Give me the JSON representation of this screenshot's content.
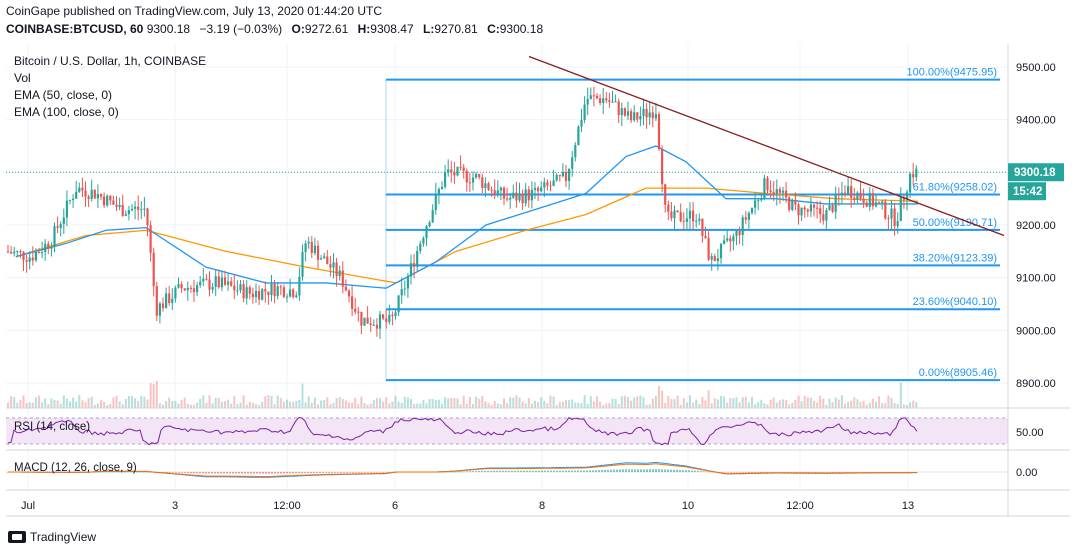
{
  "header": {
    "published": "CoinGape published on TradingView.com, July 13, 2020 01:44:20 UTC",
    "symbol": "COINBASE:BTCUSD, 60",
    "last": "9300.18",
    "change": "−3.19 (−0.03%)",
    "o_label": "O:",
    "o_val": "9272.61",
    "h_label": "H:",
    "h_val": "9308.47",
    "l_label": "L:",
    "l_val": "9270.81",
    "c_label": "C:",
    "c_val": "9300.18"
  },
  "legend": {
    "title": "Bitcoin / U.S. Dollar, 1h, COINBASE",
    "vol": "Vol",
    "ema50": "EMA (50, close, 0)",
    "ema100": "EMA (100, close, 0)",
    "rsi": "RSI (14, close)",
    "macd": "MACD (12, 26, close, 9)"
  },
  "branding": "TradingView",
  "colors": {
    "up": "#26a69a",
    "down": "#ef5350",
    "ema50": "#2196f3",
    "ema100": "#ff9800",
    "fib": "#2196f3",
    "trendline": "#8b1a1a",
    "rsi": "#7b1fa2",
    "rsi_band": "#f3e5f5",
    "price_tag": "#26a69a"
  },
  "chart_data": {
    "type": "candlestick",
    "price_axis": {
      "ticks": [
        "9500.00",
        "9400.00",
        "9300.00",
        "9200.00",
        "9100.00",
        "9000.00",
        "8900.00"
      ],
      "tick_values": [
        9500,
        9400,
        9300,
        9200,
        9100,
        9000,
        8900
      ],
      "ylim": [
        8850,
        9530
      ]
    },
    "time_axis": {
      "ticks": [
        "Jul",
        "3",
        "12:00",
        "6",
        "8",
        "10",
        "12:00",
        "13"
      ]
    },
    "last_price_label": "9300.18",
    "countdown_label": "15:42",
    "fibonacci": [
      {
        "level": "100.00%",
        "price": 9475.95,
        "label": "100.00%(9475.95)"
      },
      {
        "level": "61.80%",
        "price": 9258.02,
        "label": "61.80%(9258.02)"
      },
      {
        "level": "50.00%",
        "price": 9190.71,
        "label": "50.00%(9190.71)"
      },
      {
        "level": "38.20%",
        "price": 9123.39,
        "label": "38.20%(9123.39)"
      },
      {
        "level": "23.60%",
        "price": 9040.1,
        "label": "23.60%(9040.10)"
      },
      {
        "level": "0.00%",
        "price": 8905.46,
        "label": "0.00%(8905.46)"
      }
    ],
    "price_path": [
      {
        "x": 0,
        "p": 9150
      },
      {
        "x": 25,
        "p": 9140
      },
      {
        "x": 45,
        "p": 9170
      },
      {
        "x": 70,
        "p": 9270
      },
      {
        "x": 90,
        "p": 9260
      },
      {
        "x": 115,
        "p": 9230
      },
      {
        "x": 140,
        "p": 9230
      },
      {
        "x": 150,
        "p": 9040
      },
      {
        "x": 175,
        "p": 9080
      },
      {
        "x": 210,
        "p": 9090
      },
      {
        "x": 245,
        "p": 9070
      },
      {
        "x": 270,
        "p": 9080
      },
      {
        "x": 290,
        "p": 9075
      },
      {
        "x": 300,
        "p": 9170
      },
      {
        "x": 320,
        "p": 9130
      },
      {
        "x": 335,
        "p": 9100
      },
      {
        "x": 355,
        "p": 9020
      },
      {
        "x": 385,
        "p": 9015
      },
      {
        "x": 400,
        "p": 9090
      },
      {
        "x": 420,
        "p": 9200
      },
      {
        "x": 440,
        "p": 9300
      },
      {
        "x": 470,
        "p": 9290
      },
      {
        "x": 500,
        "p": 9250
      },
      {
        "x": 530,
        "p": 9260
      },
      {
        "x": 560,
        "p": 9290
      },
      {
        "x": 580,
        "p": 9440
      },
      {
        "x": 600,
        "p": 9440
      },
      {
        "x": 625,
        "p": 9400
      },
      {
        "x": 650,
        "p": 9420
      },
      {
        "x": 660,
        "p": 9210
      },
      {
        "x": 690,
        "p": 9220
      },
      {
        "x": 705,
        "p": 9130
      },
      {
        "x": 730,
        "p": 9180
      },
      {
        "x": 760,
        "p": 9280
      },
      {
        "x": 790,
        "p": 9230
      },
      {
        "x": 820,
        "p": 9220
      },
      {
        "x": 840,
        "p": 9270
      },
      {
        "x": 870,
        "p": 9240
      },
      {
        "x": 890,
        "p": 9210
      },
      {
        "x": 905,
        "p": 9300
      },
      {
        "x": 912,
        "p": 9300
      }
    ],
    "ema50_path": [
      {
        "x": 10,
        "p": 9140
      },
      {
        "x": 60,
        "p": 9165
      },
      {
        "x": 100,
        "p": 9190
      },
      {
        "x": 140,
        "p": 9195
      },
      {
        "x": 200,
        "p": 9120
      },
      {
        "x": 260,
        "p": 9090
      },
      {
        "x": 320,
        "p": 9090
      },
      {
        "x": 380,
        "p": 9080
      },
      {
        "x": 430,
        "p": 9130
      },
      {
        "x": 480,
        "p": 9200
      },
      {
        "x": 530,
        "p": 9230
      },
      {
        "x": 580,
        "p": 9260
      },
      {
        "x": 620,
        "p": 9330
      },
      {
        "x": 650,
        "p": 9350
      },
      {
        "x": 680,
        "p": 9320
      },
      {
        "x": 720,
        "p": 9250
      },
      {
        "x": 770,
        "p": 9250
      },
      {
        "x": 820,
        "p": 9240
      },
      {
        "x": 870,
        "p": 9240
      },
      {
        "x": 912,
        "p": 9240
      }
    ],
    "ema100_path": [
      {
        "x": 10,
        "p": 9140
      },
      {
        "x": 80,
        "p": 9180
      },
      {
        "x": 140,
        "p": 9190
      },
      {
        "x": 220,
        "p": 9150
      },
      {
        "x": 300,
        "p": 9120
      },
      {
        "x": 390,
        "p": 9090
      },
      {
        "x": 450,
        "p": 9150
      },
      {
        "x": 520,
        "p": 9190
      },
      {
        "x": 580,
        "p": 9220
      },
      {
        "x": 640,
        "p": 9270
      },
      {
        "x": 700,
        "p": 9270
      },
      {
        "x": 760,
        "p": 9260
      },
      {
        "x": 830,
        "p": 9250
      },
      {
        "x": 912,
        "p": 9245
      }
    ],
    "trendline": {
      "from": {
        "x": 523,
        "p": 9520
      },
      "to": {
        "x": 998,
        "p": 9180
      }
    },
    "rsi_axis": {
      "ticks": [
        "50.00"
      ]
    },
    "macd_axis": {
      "ticks": [
        "0.00"
      ]
    }
  }
}
